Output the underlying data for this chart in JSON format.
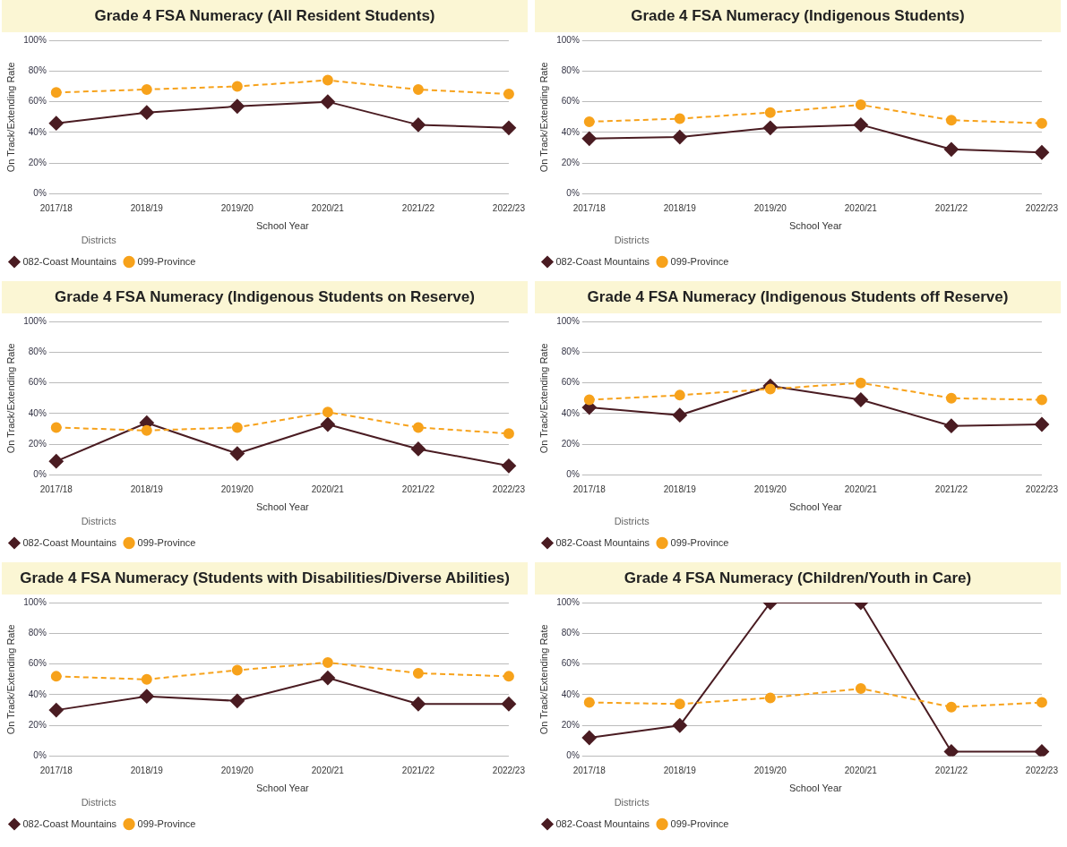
{
  "chart_data": [
    {
      "type": "line",
      "title": "Grade 4 FSA Numeracy (All Resident Students)",
      "xlabel": "School Year",
      "ylabel": "On Track/Extending Rate",
      "legend_title": "Districts",
      "legend": "bottom left",
      "grid": "y",
      "categories": [
        "2017/18",
        "2018/19",
        "2019/20",
        "2020/21",
        "2021/22",
        "2022/23"
      ],
      "ylim": [
        0,
        100
      ],
      "yticks": [
        {
          "value": 0,
          "label": "0%"
        },
        {
          "value": 20,
          "label": "20%"
        },
        {
          "value": 40,
          "label": "40%"
        },
        {
          "value": 60,
          "label": "60%"
        },
        {
          "value": 80,
          "label": "80%"
        },
        {
          "value": 100,
          "label": "100%"
        }
      ],
      "series": [
        {
          "name": "082-Coast Mountains",
          "color": "#4a1c22",
          "marker": "diamond",
          "line_style": "solid",
          "values": [
            46,
            53,
            57,
            60,
            45,
            43
          ]
        },
        {
          "name": "099-Province",
          "color": "#f7a21b",
          "marker": "circle",
          "line_style": "dashed",
          "values": [
            66,
            68,
            70,
            74,
            68,
            65
          ]
        }
      ]
    },
    {
      "type": "line",
      "title": "Grade 4 FSA Numeracy (Indigenous Students)",
      "xlabel": "School Year",
      "ylabel": "On Track/Extending Rate",
      "legend_title": "Districts",
      "legend": "bottom left",
      "grid": "y",
      "categories": [
        "2017/18",
        "2018/19",
        "2019/20",
        "2020/21",
        "2021/22",
        "2022/23"
      ],
      "ylim": [
        0,
        100
      ],
      "yticks": [
        {
          "value": 0,
          "label": "0%"
        },
        {
          "value": 20,
          "label": "20%"
        },
        {
          "value": 40,
          "label": "40%"
        },
        {
          "value": 60,
          "label": "60%"
        },
        {
          "value": 80,
          "label": "80%"
        },
        {
          "value": 100,
          "label": "100%"
        }
      ],
      "series": [
        {
          "name": "082-Coast Mountains",
          "color": "#4a1c22",
          "marker": "diamond",
          "line_style": "solid",
          "values": [
            36,
            37,
            43,
            45,
            29,
            27
          ]
        },
        {
          "name": "099-Province",
          "color": "#f7a21b",
          "marker": "circle",
          "line_style": "dashed",
          "values": [
            47,
            49,
            53,
            58,
            48,
            46
          ]
        }
      ]
    },
    {
      "type": "line",
      "title": "Grade 4 FSA Numeracy (Indigenous Students on Reserve)",
      "xlabel": "School Year",
      "ylabel": "On Track/Extending Rate",
      "legend_title": "Districts",
      "legend": "bottom left",
      "grid": "y",
      "categories": [
        "2017/18",
        "2018/19",
        "2019/20",
        "2020/21",
        "2021/22",
        "2022/23"
      ],
      "ylim": [
        0,
        100
      ],
      "yticks": [
        {
          "value": 0,
          "label": "0%"
        },
        {
          "value": 20,
          "label": "20%"
        },
        {
          "value": 40,
          "label": "40%"
        },
        {
          "value": 60,
          "label": "60%"
        },
        {
          "value": 80,
          "label": "80%"
        },
        {
          "value": 100,
          "label": "100%"
        }
      ],
      "series": [
        {
          "name": "082-Coast Mountains",
          "color": "#4a1c22",
          "marker": "diamond",
          "line_style": "solid",
          "values": [
            9,
            34,
            14,
            33,
            17,
            6
          ]
        },
        {
          "name": "099-Province",
          "color": "#f7a21b",
          "marker": "circle",
          "line_style": "dashed",
          "values": [
            31,
            29,
            31,
            41,
            31,
            27
          ]
        }
      ]
    },
    {
      "type": "line",
      "title": "Grade 4 FSA Numeracy (Indigenous Students off Reserve)",
      "xlabel": "School Year",
      "ylabel": "On Track/Extending Rate",
      "legend_title": "Districts",
      "legend": "bottom left",
      "grid": "y",
      "categories": [
        "2017/18",
        "2018/19",
        "2019/20",
        "2020/21",
        "2021/22",
        "2022/23"
      ],
      "ylim": [
        0,
        100
      ],
      "yticks": [
        {
          "value": 0,
          "label": "0%"
        },
        {
          "value": 20,
          "label": "20%"
        },
        {
          "value": 40,
          "label": "40%"
        },
        {
          "value": 60,
          "label": "60%"
        },
        {
          "value": 80,
          "label": "80%"
        },
        {
          "value": 100,
          "label": "100%"
        }
      ],
      "series": [
        {
          "name": "082-Coast Mountains",
          "color": "#4a1c22",
          "marker": "diamond",
          "line_style": "solid",
          "values": [
            44,
            39,
            58,
            49,
            32,
            33
          ]
        },
        {
          "name": "099-Province",
          "color": "#f7a21b",
          "marker": "circle",
          "line_style": "dashed",
          "values": [
            49,
            52,
            56,
            60,
            50,
            49
          ]
        }
      ]
    },
    {
      "type": "line",
      "title": "Grade 4 FSA Numeracy (Students with Disabilities/Diverse Abilities)",
      "xlabel": "School Year",
      "ylabel": "On Track/Extending Rate",
      "legend_title": "Districts",
      "legend": "bottom left",
      "grid": "y",
      "categories": [
        "2017/18",
        "2018/19",
        "2019/20",
        "2020/21",
        "2021/22",
        "2022/23"
      ],
      "ylim": [
        0,
        100
      ],
      "yticks": [
        {
          "value": 0,
          "label": "0%"
        },
        {
          "value": 20,
          "label": "20%"
        },
        {
          "value": 40,
          "label": "40%"
        },
        {
          "value": 60,
          "label": "60%"
        },
        {
          "value": 80,
          "label": "80%"
        },
        {
          "value": 100,
          "label": "100%"
        }
      ],
      "series": [
        {
          "name": "082-Coast Mountains",
          "color": "#4a1c22",
          "marker": "diamond",
          "line_style": "solid",
          "values": [
            30,
            39,
            36,
            51,
            34,
            34
          ]
        },
        {
          "name": "099-Province",
          "color": "#f7a21b",
          "marker": "circle",
          "line_style": "dashed",
          "values": [
            52,
            50,
            56,
            61,
            54,
            52
          ]
        }
      ]
    },
    {
      "type": "line",
      "title": "Grade 4 FSA Numeracy (Children/Youth in Care)",
      "xlabel": "School Year",
      "ylabel": "On Track/Extending Rate",
      "legend_title": "Districts",
      "legend": "bottom left",
      "grid": "y",
      "categories": [
        "2017/18",
        "2018/19",
        "2019/20",
        "2020/21",
        "2021/22",
        "2022/23"
      ],
      "ylim": [
        0,
        100
      ],
      "yticks": [
        {
          "value": 0,
          "label": "0%"
        },
        {
          "value": 20,
          "label": "20%"
        },
        {
          "value": 40,
          "label": "40%"
        },
        {
          "value": 60,
          "label": "60%"
        },
        {
          "value": 80,
          "label": "80%"
        },
        {
          "value": 100,
          "label": "100%"
        }
      ],
      "series": [
        {
          "name": "082-Coast Mountains",
          "color": "#4a1c22",
          "marker": "diamond",
          "line_style": "solid",
          "values": [
            12,
            20,
            100,
            100,
            3,
            3
          ]
        },
        {
          "name": "099-Province",
          "color": "#f7a21b",
          "marker": "circle",
          "line_style": "dashed",
          "values": [
            35,
            34,
            38,
            44,
            32,
            35
          ]
        }
      ]
    }
  ]
}
